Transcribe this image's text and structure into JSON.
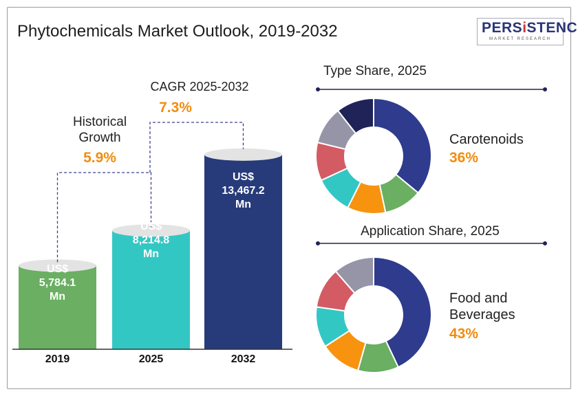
{
  "title": "Phytochemicals Market Outlook, 2019-2032",
  "logo": {
    "text": "PERSISTENCE",
    "subtext": "MARKET RESEARCH"
  },
  "colors": {
    "accent": "#f28c0f",
    "green": "#6aaf62",
    "teal": "#33c7c4",
    "navy": "#273b7a"
  },
  "chart_data": [
    {
      "type": "bar",
      "categories": [
        "2019",
        "2025",
        "2032"
      ],
      "values": [
        5784.1,
        8214.8,
        13467.2
      ],
      "value_labels": [
        "US$ 5,784.1 Mn",
        "US$ 8,214.8 Mn",
        "US$ 13,467.2 Mn"
      ],
      "unit": "US$ Mn",
      "colors": [
        "#6aaf62",
        "#33c7c4",
        "#273b7a"
      ],
      "annotations": [
        {
          "label": "Historical Growth",
          "value": "5.9%"
        },
        {
          "label": "CAGR 2025-2032",
          "value": "7.3%"
        }
      ]
    },
    {
      "type": "pie",
      "title": "Type Share, 2025",
      "highlight": {
        "label": "Carotenoids",
        "value": "36%"
      },
      "values": [
        36,
        10.7,
        10.7,
        10.7,
        10.7,
        10.6,
        10.6
      ],
      "colors": [
        "#2f3b8c",
        "#6aaf62",
        "#f7930f",
        "#33c7c4",
        "#d35b63",
        "#9695a8",
        "#1f2358"
      ]
    },
    {
      "type": "pie",
      "title": "Application Share, 2025",
      "highlight": {
        "label": "Food and Beverages",
        "value": "43%"
      },
      "values": [
        43,
        11.4,
        11.4,
        11.4,
        11.4,
        11.4
      ],
      "colors": [
        "#2f3b8c",
        "#6aaf62",
        "#f7930f",
        "#33c7c4",
        "#d35b63",
        "#9695a8"
      ]
    }
  ],
  "labels": {
    "hist_line1": "Historical",
    "hist_line2": "Growth",
    "hist_value": "5.9%",
    "cagr_label": "CAGR 2025-2032",
    "cagr_value": "7.3%",
    "bar_prefix": "US$",
    "bar_suffix": "Mn",
    "bar_values": [
      "5,784.1",
      "8,214.8",
      "13,467.2"
    ],
    "type_title": "Type Share, 2025",
    "type_name": "Carotenoids",
    "type_value": "36%",
    "app_title": "Application Share, 2025",
    "app_name1": "Food and",
    "app_name2": "Beverages",
    "app_value": "43%"
  }
}
